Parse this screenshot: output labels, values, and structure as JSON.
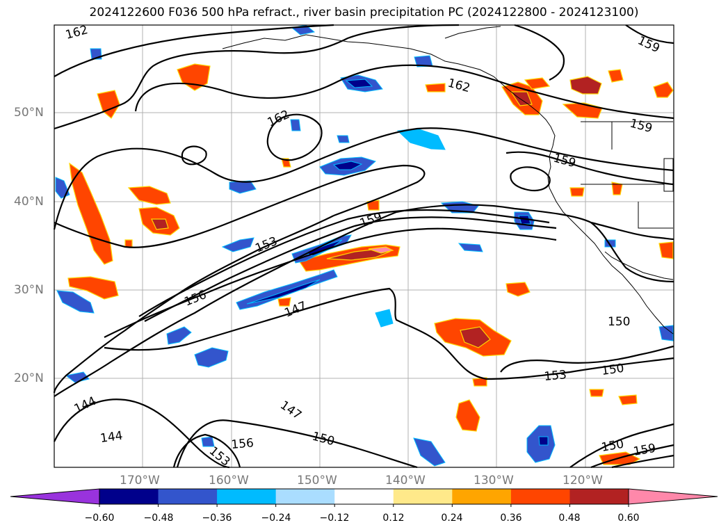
{
  "title": "2024122600 F036 500 hPa refract., river basin precipitation PC (2024122800 - 2024123100)",
  "lat_labels": [
    "50°N",
    "40°N",
    "30°N",
    "20°N"
  ],
  "lon_labels": [
    "170°W",
    "160°W",
    "150°W",
    "140°W",
    "130°W",
    "120°W"
  ],
  "contour_labels": [
    "162",
    "162",
    "162",
    "159",
    "159",
    "159",
    "159",
    "153",
    "156",
    "147",
    "150",
    "153",
    "150",
    "144",
    "144",
    "147",
    "156",
    "153",
    "150",
    "150",
    "159"
  ],
  "colorbar": {
    "tick_labels": [
      "−0.60",
      "−0.48",
      "−0.36",
      "−0.24",
      "−0.12",
      "0.12",
      "0.24",
      "0.36",
      "0.48",
      "0.60"
    ],
    "colors": [
      "#9933dd",
      "#00008b",
      "#3355cc",
      "#00bbff",
      "#aaddff",
      "#ffffff",
      "#ffe98a",
      "#ffa500",
      "#ff4500",
      "#b22222",
      "#ff88aa"
    ]
  }
}
